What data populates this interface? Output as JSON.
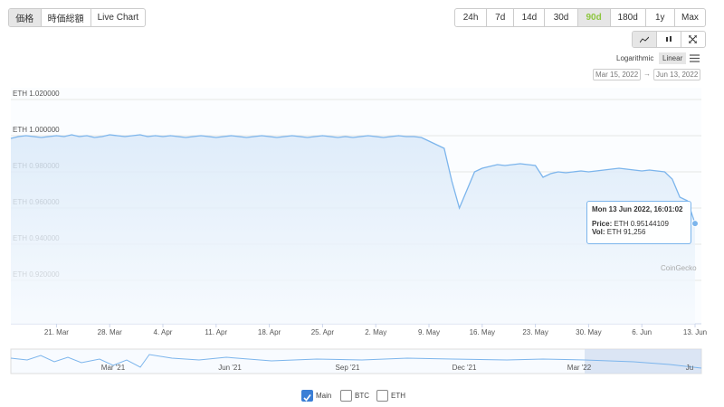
{
  "tabs": [
    "価格",
    "時価総額",
    "Live Chart"
  ],
  "ranges": [
    "24h",
    "7d",
    "14d",
    "30d",
    "90d",
    "180d",
    "1y",
    "Max"
  ],
  "scale_options": [
    "Logarithmic",
    "Linear"
  ],
  "date_range": {
    "from": "Mar 15, 2022",
    "separator": "→",
    "to": "Jun 13, 2022"
  },
  "chart_data": {
    "type": "line",
    "categories": [
      null,
      null,
      null,
      null,
      null,
      null,
      "21. Mar",
      null,
      null,
      null,
      null,
      null,
      null,
      "28. Mar",
      null,
      null,
      null,
      null,
      null,
      null,
      "4. Apr",
      null,
      null,
      null,
      null,
      null,
      null,
      "11. Apr",
      null,
      null,
      null,
      null,
      null,
      null,
      "18. Apr",
      null,
      null,
      null,
      null,
      null,
      null,
      "25. Apr",
      null,
      null,
      null,
      null,
      null,
      null,
      "2. May",
      null,
      null,
      null,
      null,
      null,
      null,
      "9. May",
      null,
      null,
      null,
      null,
      null,
      null,
      "16. May",
      null,
      null,
      null,
      null,
      null,
      null,
      "23. May",
      null,
      null,
      null,
      null,
      null,
      null,
      "30. May",
      null,
      null,
      null,
      null,
      null,
      null,
      "6. Jun",
      null,
      null,
      null,
      null,
      null,
      null,
      "13. Jun"
    ],
    "series": [
      {
        "name": "Main",
        "color": "#7cb5ec",
        "values": [
          0.9985,
          0.9995,
          1.0,
          0.9995,
          0.999,
          0.9995,
          1.0,
          0.9995,
          1.0005,
          0.9995,
          1.0,
          0.999,
          0.9995,
          1.0005,
          1.0,
          0.9995,
          1.0,
          1.0005,
          0.9995,
          1.0,
          0.9995,
          1.0,
          0.9995,
          0.999,
          0.9995,
          1.0,
          0.9995,
          0.999,
          0.9995,
          1.0,
          0.9995,
          0.999,
          0.9995,
          1.0,
          0.9995,
          0.999,
          0.9995,
          1.0,
          0.9995,
          0.999,
          0.9995,
          1.0,
          0.9995,
          0.999,
          0.9995,
          0.999,
          0.9995,
          1.0,
          0.9995,
          0.999,
          0.9995,
          1.0,
          0.9995,
          0.9995,
          0.999,
          0.997,
          0.995,
          0.993,
          0.975,
          0.96,
          0.97,
          0.98,
          0.982,
          0.983,
          0.984,
          0.9835,
          0.984,
          0.9845,
          0.984,
          0.9835,
          0.977,
          0.979,
          0.98,
          0.9795,
          0.98,
          0.9805,
          0.98,
          0.9805,
          0.981,
          0.9815,
          0.982,
          0.9815,
          0.981,
          0.9805,
          0.981,
          0.9805,
          0.98,
          0.976,
          0.966,
          0.964,
          0.95144109
        ]
      }
    ],
    "ylim": [
      0.896,
      1.0265
    ],
    "yticks": [
      {
        "value": 1.02,
        "label": "ETH 1.020000"
      },
      {
        "value": 1.0,
        "label": "ETH 1.000000"
      },
      {
        "value": 0.98,
        "label": "ETH 0.980000"
      },
      {
        "value": 0.96,
        "label": "ETH 0.960000"
      },
      {
        "value": 0.94,
        "label": "ETH 0.940000"
      },
      {
        "value": 0.92,
        "label": "ETH 0.920000"
      }
    ],
    "grid": true,
    "tooltip": {
      "title": "Mon 13 Jun 2022, 16:01:02",
      "price_label": "Price:",
      "price": "ETH 0.95144109",
      "vol_label": "Vol:",
      "vol": "ETH 91,256"
    },
    "watermark": "CoinGecko",
    "navigator_labels": [
      "Mar '21",
      "Jun '21",
      "Sep '21",
      "Dec '21",
      "Mar '22",
      "Ju"
    ]
  },
  "compare": [
    "BTC",
    "ETH"
  ]
}
